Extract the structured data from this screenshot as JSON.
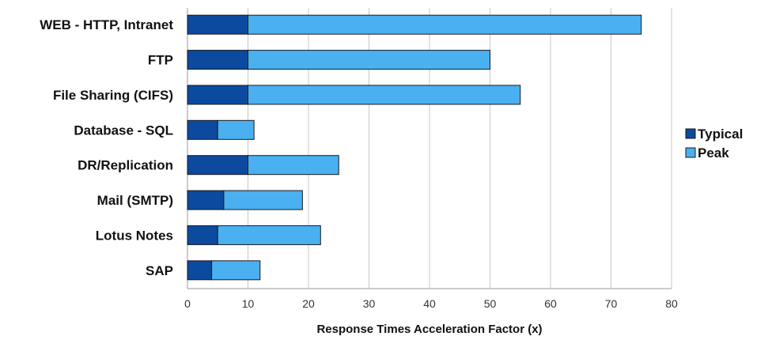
{
  "chart_data": {
    "type": "bar",
    "orientation": "horizontal",
    "stacked": true,
    "categories": [
      "WEB - HTTP, Intranet",
      "FTP",
      "File Sharing (CIFS)",
      "Database - SQL",
      "DR/Replication",
      "Mail (SMTP)",
      "Lotus Notes",
      "SAP"
    ],
    "series": [
      {
        "name": "Typical",
        "values": [
          10,
          10,
          10,
          5,
          10,
          6,
          5,
          4
        ],
        "color": "#0b4a9e"
      },
      {
        "name": "Peak",
        "values": [
          65,
          40,
          45,
          6,
          15,
          13,
          17,
          8
        ],
        "color": "#4ab0f0"
      }
    ],
    "xlabel": "Response Times Acceleration Factor (x)",
    "xlim": [
      0,
      80
    ],
    "xticks": [
      0,
      10,
      20,
      30,
      40,
      50,
      60,
      70,
      80
    ],
    "grid": "vertical",
    "legend_position": "right"
  }
}
